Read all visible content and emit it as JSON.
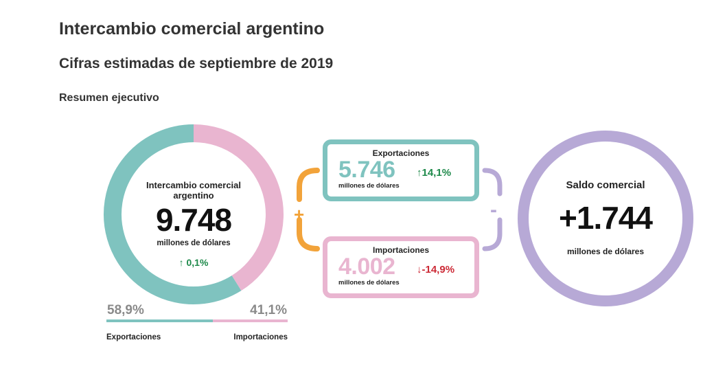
{
  "header": {
    "title": "Intercambio comercial argentino",
    "subtitle": "Cifras estimadas de septiembre de 2019",
    "section": "Resumen ejecutivo"
  },
  "donut_center": {
    "label_line1": "Intercambio comercial",
    "label_line2": "argentino",
    "value": "9.748",
    "unit": "millones de dólares",
    "variation": "↑ 0,1%"
  },
  "shares": {
    "exports_pct": "58,9%",
    "imports_pct": "41,1%",
    "exports_label": "Exportaciones",
    "imports_label": "Importaciones"
  },
  "exports_box": {
    "title": "Exportaciones",
    "value": "5.746",
    "unit": "millones de dólares",
    "variation": "↑14,1%"
  },
  "imports_box": {
    "title": "Importaciones",
    "value": "4.002",
    "unit": "millones de dólares",
    "variation": "↓-14,9%"
  },
  "operators": {
    "plus": "+",
    "minus": "-"
  },
  "balance": {
    "label": "Saldo comercial",
    "value": "+1.744",
    "unit": "millones de dólares"
  },
  "colors": {
    "exports": "#7fc3bf",
    "imports": "#e9b5d0",
    "balance": "#b7a9d6",
    "plus": "#f2a33a",
    "up": "#1f8a4b",
    "down": "#cc2a36"
  },
  "chart_data": {
    "type": "pie",
    "categories": [
      "Exportaciones",
      "Importaciones"
    ],
    "values": [
      58.9,
      41.1
    ]
  }
}
